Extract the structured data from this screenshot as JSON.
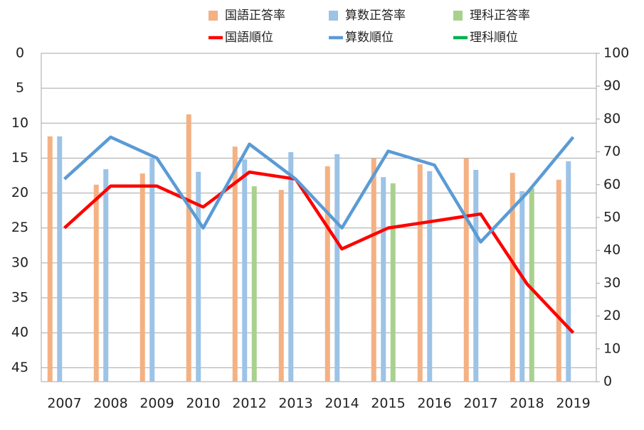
{
  "chart_data": {
    "type": "bar-line",
    "categories": [
      "2007",
      "2008",
      "2009",
      "2010",
      "2012",
      "2013",
      "2014",
      "2015",
      "2016",
      "2017",
      "2018",
      "2019"
    ],
    "ylim": [
      0,
      47
    ],
    "y_inverted": true,
    "yticks": [
      0,
      5,
      10,
      15,
      20,
      25,
      30,
      35,
      40,
      45
    ],
    "y2lim": [
      0,
      100
    ],
    "y2ticks": [
      0,
      10,
      20,
      30,
      40,
      50,
      60,
      70,
      80,
      90,
      100
    ],
    "grid": true,
    "series": [
      {
        "name": "国語正答率",
        "type": "bar",
        "axis": "y2",
        "color": "#f4b183",
        "values": [
          74.7,
          60,
          63.4,
          81.4,
          71.6,
          58.4,
          65.6,
          68,
          66.2,
          68,
          63.6,
          61.5
        ]
      },
      {
        "name": "算数正答率",
        "type": "bar",
        "axis": "y2",
        "color": "#9dc3e6",
        "values": [
          74.7,
          64.7,
          68.2,
          63.9,
          67.7,
          69.9,
          69.3,
          62.3,
          64.1,
          64.5,
          58,
          67.1
        ]
      },
      {
        "name": "理科正答率",
        "type": "bar",
        "axis": "y2",
        "color": "#a9d18e",
        "values": [
          null,
          null,
          null,
          null,
          59.5,
          null,
          null,
          60.4,
          null,
          null,
          58.9,
          null
        ]
      },
      {
        "name": "国語順位",
        "type": "line",
        "color": "#ff0000",
        "values": [
          25,
          19,
          19,
          22,
          17,
          18,
          28,
          25,
          24,
          23,
          33,
          40
        ]
      },
      {
        "name": "算数順位",
        "type": "line",
        "color": "#5b9bd5",
        "values": [
          18,
          12,
          15,
          25,
          13,
          18,
          25,
          14,
          16,
          27,
          20,
          12
        ]
      },
      {
        "name": "理科順位",
        "type": "line",
        "color": "#00b050",
        "values": [
          null,
          null,
          null,
          null,
          null,
          null,
          null,
          null,
          null,
          null,
          null,
          null
        ]
      }
    ]
  }
}
